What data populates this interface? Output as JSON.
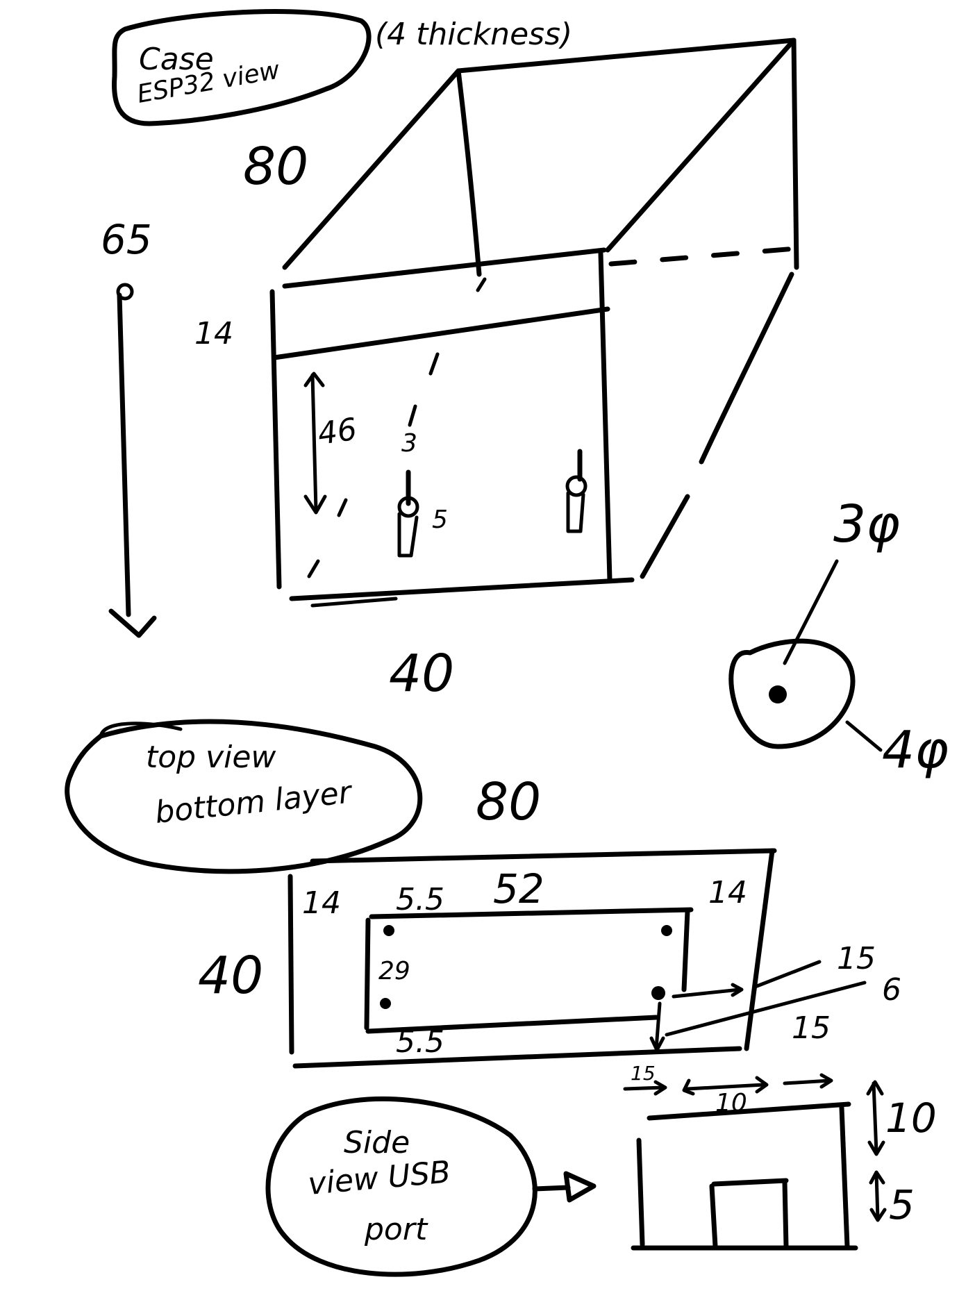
{
  "callouts": {
    "case_view": [
      "Case",
      "ESP32 view"
    ],
    "top_view": [
      "top view",
      "bottom layer"
    ],
    "side_view": [
      "Side",
      "view USB",
      "port"
    ]
  },
  "case_view": {
    "thickness_note": "(4 thickness)",
    "depth": "80",
    "total_height": "65",
    "top_band": "14",
    "inner_height": "46",
    "width": "40",
    "post_top": "3",
    "post_bottom": "5",
    "hole_inner": "3φ",
    "hole_outer": "4φ"
  },
  "top_view": {
    "length": "80",
    "width": "40",
    "left_margin": "14",
    "right_margin": "14",
    "top_offset": "5.5",
    "board_length": "52",
    "board_width": "29",
    "bottom_offset": "5.5",
    "right_a": "15",
    "right_b": "6"
  },
  "side_view": {
    "seg_left": "15",
    "seg_mid": "10",
    "seg_right": "15",
    "upper_height": "10",
    "lower_height": "5"
  }
}
